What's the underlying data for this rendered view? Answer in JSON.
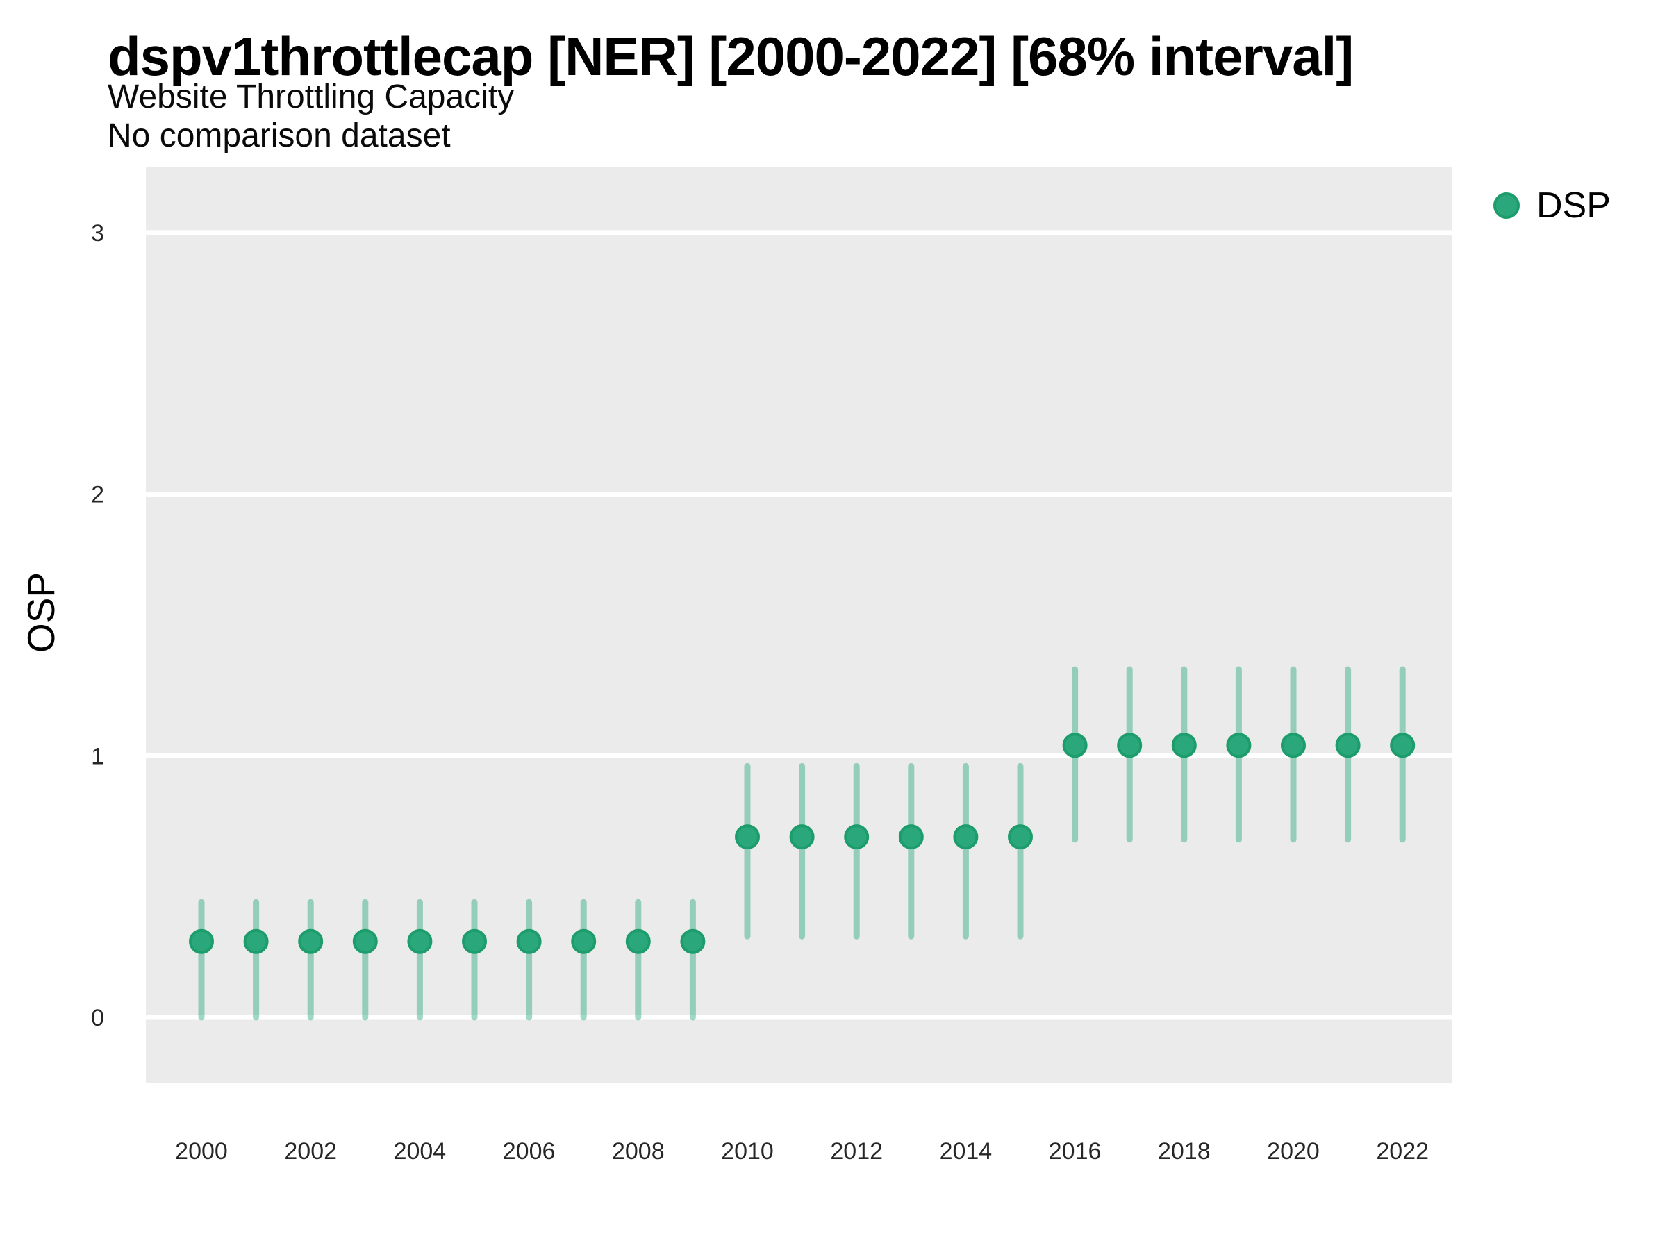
{
  "figure": {
    "title": "dspv1throttlecap [NER] [2000-2022] [68% interval]",
    "subtitle": "Website Throttling Capacity",
    "subtitle2": "No comparison dataset",
    "y_axis_title": "OSP",
    "legend": {
      "label": "DSP",
      "marker_color": "#2aa87c"
    }
  },
  "chart_data": {
    "type": "pointrange-scatter",
    "title": "dspv1throttlecap [NER] [2000-2022] [68% interval]",
    "subtitle": "Website Throttling Capacity",
    "comparison_note": "No comparison dataset",
    "interval": "68%",
    "xlabel": "",
    "ylabel": "OSP",
    "legend_position": "right-top",
    "grid": "horizontal-white-on-gray",
    "x": [
      2000,
      2001,
      2002,
      2003,
      2004,
      2005,
      2006,
      2007,
      2008,
      2009,
      2010,
      2011,
      2012,
      2013,
      2014,
      2015,
      2016,
      2017,
      2018,
      2019,
      2020,
      2021,
      2022
    ],
    "series": [
      {
        "name": "DSP",
        "values": [
          0.29,
          0.29,
          0.29,
          0.29,
          0.29,
          0.29,
          0.29,
          0.29,
          0.29,
          0.29,
          0.69,
          0.69,
          0.69,
          0.69,
          0.69,
          0.69,
          1.04,
          1.04,
          1.04,
          1.04,
          1.04,
          1.04,
          1.04
        ],
        "lower": [
          0.0,
          0.0,
          0.0,
          0.0,
          0.0,
          0.0,
          0.0,
          0.0,
          0.0,
          0.0,
          0.31,
          0.31,
          0.31,
          0.31,
          0.31,
          0.31,
          0.68,
          0.68,
          0.68,
          0.68,
          0.68,
          0.68,
          0.68
        ],
        "upper": [
          0.44,
          0.44,
          0.44,
          0.44,
          0.44,
          0.44,
          0.44,
          0.44,
          0.44,
          0.44,
          0.96,
          0.96,
          0.96,
          0.96,
          0.96,
          0.96,
          1.33,
          1.33,
          1.33,
          1.33,
          1.33,
          1.33,
          1.33
        ]
      }
    ],
    "x_ticks": [
      2000,
      2002,
      2004,
      2006,
      2008,
      2010,
      2012,
      2014,
      2016,
      2018,
      2020,
      2022
    ],
    "y_ticks": [
      0,
      1,
      2,
      3
    ],
    "xlim": [
      1999.0,
      2023.0
    ],
    "ylim": [
      -0.25,
      3.25
    ],
    "colors": {
      "point_fill": "#2aa87c",
      "point_stroke": "#1d9c6c",
      "errorbar": "rgba(42,168,124,0.45)",
      "panel_background": "#ebebeb",
      "gridline": "#ffffff",
      "tick_text": "#262626"
    }
  }
}
